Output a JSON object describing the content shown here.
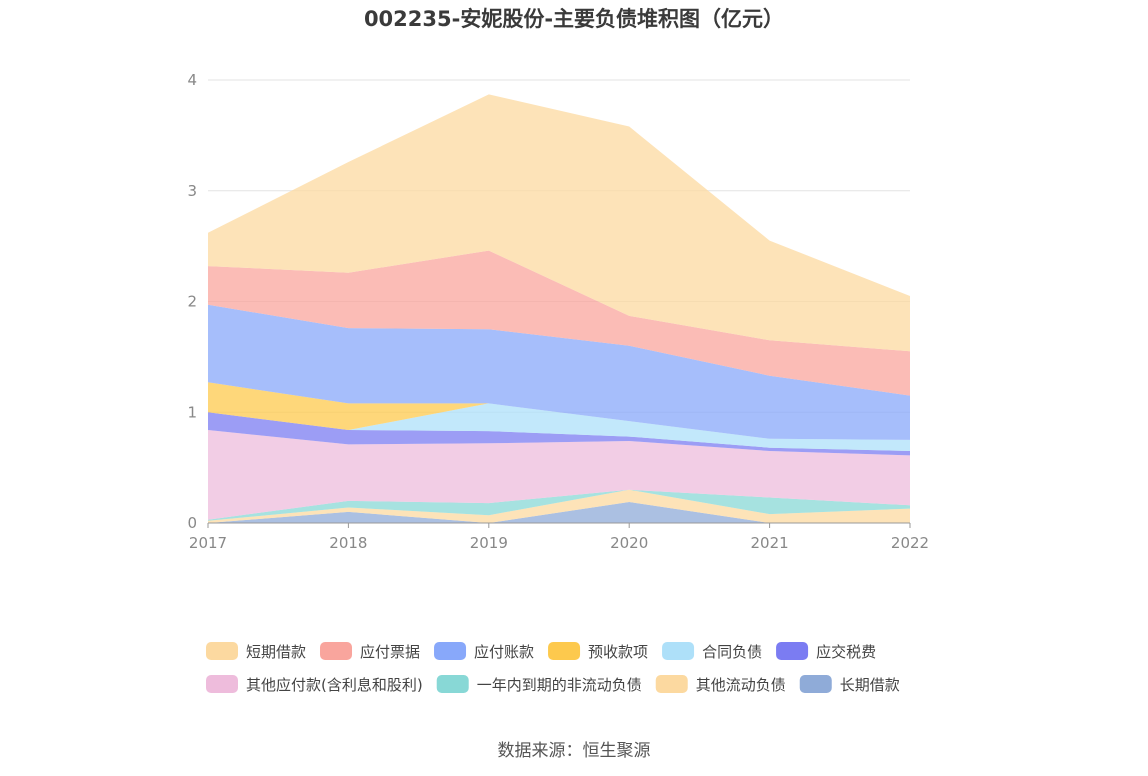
{
  "chart_data": {
    "type": "area",
    "stacked": true,
    "title": "002235-安妮股份-主要负债堆积图（亿元）",
    "source": "数据来源：恒生聚源",
    "categories": [
      "2017",
      "2018",
      "2019",
      "2020",
      "2021",
      "2022"
    ],
    "ylim": [
      0,
      4
    ],
    "yticks": [
      "0",
      "1",
      "2",
      "3",
      "4"
    ],
    "grid": true,
    "legend_position": "bottom",
    "series": [
      {
        "name": "长期借款",
        "color": "#8fabd8",
        "values": [
          0.0,
          0.1,
          0.0,
          0.19,
          0.0,
          0.0
        ]
      },
      {
        "name": "其他流动负债",
        "color": "#fcd9a0",
        "values": [
          0.02,
          0.04,
          0.07,
          0.11,
          0.08,
          0.13
        ]
      },
      {
        "name": "一年内到期的非流动负债",
        "color": "#88d8d6",
        "values": [
          0.01,
          0.06,
          0.11,
          0.0,
          0.15,
          0.03
        ]
      },
      {
        "name": "其他应付款(含利息和股利)",
        "color": "#eebcdc",
        "values": [
          0.81,
          0.51,
          0.54,
          0.44,
          0.42,
          0.45
        ]
      },
      {
        "name": "应交税费",
        "color": "#7b7cf2",
        "values": [
          0.16,
          0.13,
          0.11,
          0.04,
          0.03,
          0.04
        ]
      },
      {
        "name": "合同负债",
        "color": "#aee0f9",
        "values": [
          0.0,
          0.0,
          0.25,
          0.14,
          0.08,
          0.1
        ]
      },
      {
        "name": "预收款项",
        "color": "#fdc94d",
        "values": [
          0.27,
          0.24,
          0.0,
          0.0,
          0.0,
          0.0
        ]
      },
      {
        "name": "应付账款",
        "color": "#88a8fa",
        "values": [
          0.7,
          0.68,
          0.67,
          0.68,
          0.57,
          0.4
        ]
      },
      {
        "name": "应付票据",
        "color": "#f9a59d",
        "values": [
          0.35,
          0.5,
          0.71,
          0.27,
          0.32,
          0.4
        ]
      },
      {
        "name": "短期借款",
        "color": "#fcd9a0",
        "values": [
          0.3,
          1.0,
          1.41,
          1.71,
          0.9,
          0.5
        ]
      }
    ],
    "legend": [
      {
        "name": "短期借款",
        "color": "#fcd9a0"
      },
      {
        "name": "应付票据",
        "color": "#f9a59d"
      },
      {
        "name": "应付账款",
        "color": "#88a8fa"
      },
      {
        "name": "预收款项",
        "color": "#fdc94d"
      },
      {
        "name": "合同负债",
        "color": "#aee0f9"
      },
      {
        "name": "应交税费",
        "color": "#7b7cf2"
      },
      {
        "name": "其他应付款(含利息和股利)",
        "color": "#eebcdc"
      },
      {
        "name": "一年内到期的非流动负债",
        "color": "#88d8d6"
      },
      {
        "name": "其他流动负债",
        "color": "#fcd9a0"
      },
      {
        "name": "长期借款",
        "color": "#8fabd8"
      }
    ]
  }
}
